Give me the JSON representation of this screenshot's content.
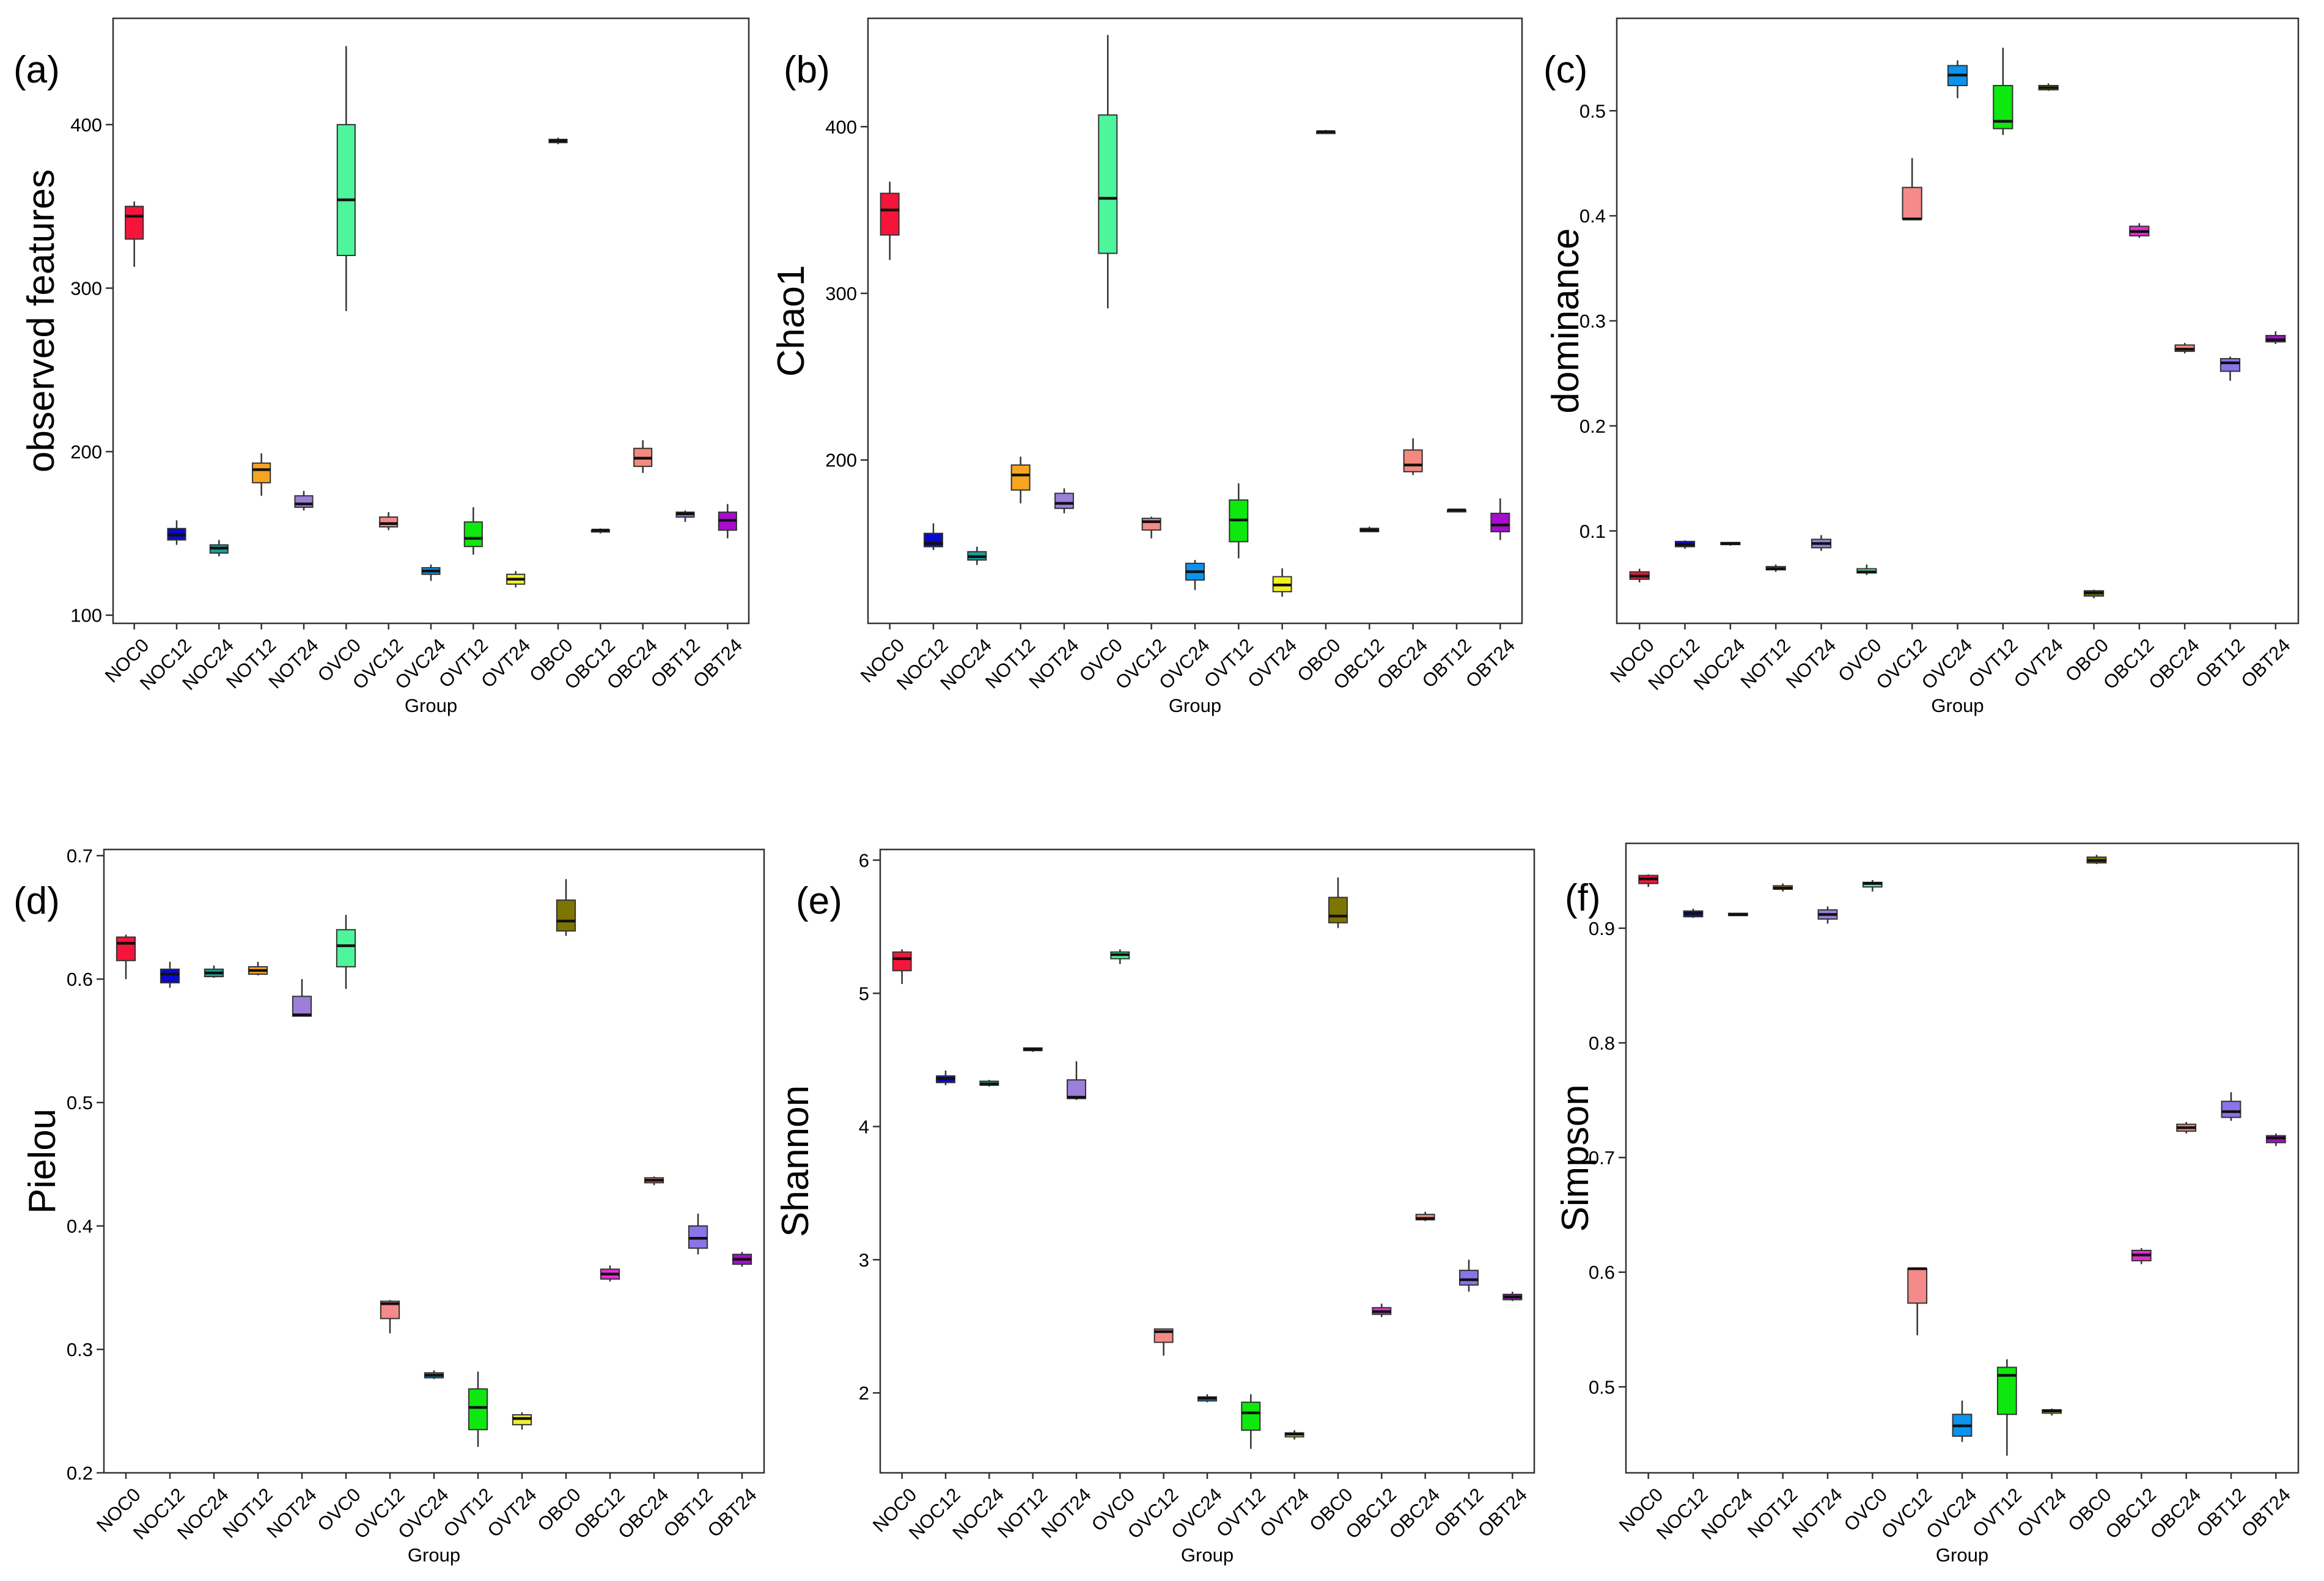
{
  "chart_data": [
    {
      "panel": "(a)",
      "type": "box",
      "title": "",
      "xlabel": "Group",
      "ylabel": "observed features",
      "ylim": [
        95,
        465
      ],
      "yticks": [
        100,
        200,
        300,
        400
      ],
      "categories": [
        "NOC0",
        "NOC12",
        "NOC24",
        "NOT12",
        "NOT24",
        "OVC0",
        "OVC12",
        "OVC24",
        "OVT12",
        "OVT24",
        "OBC0",
        "OBC12",
        "OBC24",
        "OBT12",
        "OBT24"
      ],
      "boxes": [
        {
          "min": 313,
          "q1": 330,
          "median": 344,
          "q3": 350,
          "max": 353
        },
        {
          "min": 143,
          "q1": 146,
          "median": 149,
          "q3": 153,
          "max": 158
        },
        {
          "min": 136,
          "q1": 138,
          "median": 141,
          "q3": 143,
          "max": 146
        },
        {
          "min": 173,
          "q1": 181,
          "median": 189,
          "q3": 193,
          "max": 199
        },
        {
          "min": 164,
          "q1": 166,
          "median": 168,
          "q3": 173,
          "max": 176
        },
        {
          "min": 286,
          "q1": 320,
          "median": 354,
          "q3": 400,
          "max": 448
        },
        {
          "min": 152,
          "q1": 154,
          "median": 156,
          "q3": 160,
          "max": 163
        },
        {
          "min": 121,
          "q1": 125,
          "median": 127,
          "q3": 129,
          "max": 131
        },
        {
          "min": 137,
          "q1": 142,
          "median": 147,
          "q3": 157,
          "max": 166
        },
        {
          "min": 117,
          "q1": 119,
          "median": 122,
          "q3": 125,
          "max": 127
        },
        {
          "min": 388,
          "q1": 389,
          "median": 390,
          "q3": 391,
          "max": 392
        },
        {
          "min": 150,
          "q1": 151,
          "median": 152,
          "q3": 152,
          "max": 153
        },
        {
          "min": 187,
          "q1": 191,
          "median": 196,
          "q3": 202,
          "max": 207
        },
        {
          "min": 157,
          "q1": 160,
          "median": 162,
          "q3": 163,
          "max": 164
        },
        {
          "min": 147,
          "q1": 152,
          "median": 158,
          "q3": 163,
          "max": 168
        }
      ]
    },
    {
      "panel": "(b)",
      "type": "box",
      "title": "",
      "xlabel": "Group",
      "ylabel": "Chao1",
      "ylim": [
        102,
        465
      ],
      "yticks": [
        200,
        300,
        400
      ],
      "categories": [
        "NOC0",
        "NOC12",
        "NOC24",
        "NOT12",
        "NOT24",
        "OVC0",
        "OVC12",
        "OVC24",
        "OVT12",
        "OVT24",
        "OBC0",
        "OBC12",
        "OBC24",
        "OBT12",
        "OBT24"
      ],
      "boxes": [
        {
          "min": 320,
          "q1": 335,
          "median": 350,
          "q3": 360,
          "max": 367
        },
        {
          "min": 146,
          "q1": 148,
          "median": 150,
          "q3": 156,
          "max": 162
        },
        {
          "min": 137,
          "q1": 140,
          "median": 142,
          "q3": 145,
          "max": 148
        },
        {
          "min": 174,
          "q1": 182,
          "median": 191,
          "q3": 197,
          "max": 202
        },
        {
          "min": 168,
          "q1": 171,
          "median": 174,
          "q3": 180,
          "max": 183
        },
        {
          "min": 291,
          "q1": 324,
          "median": 357,
          "q3": 407,
          "max": 455
        },
        {
          "min": 153,
          "q1": 158,
          "median": 163,
          "q3": 165,
          "max": 166
        },
        {
          "min": 122,
          "q1": 128,
          "median": 133,
          "q3": 138,
          "max": 140
        },
        {
          "min": 141,
          "q1": 151,
          "median": 164,
          "q3": 176,
          "max": 186
        },
        {
          "min": 118,
          "q1": 121,
          "median": 125,
          "q3": 130,
          "max": 135
        },
        {
          "min": 396,
          "q1": 397,
          "median": 397,
          "q3": 397,
          "max": 398
        },
        {
          "min": 157,
          "q1": 157,
          "median": 158,
          "q3": 159,
          "max": 160
        },
        {
          "min": 191,
          "q1": 193,
          "median": 197,
          "q3": 206,
          "max": 213
        },
        {
          "min": 169,
          "q1": 169,
          "median": 170,
          "q3": 170,
          "max": 170
        },
        {
          "min": 152,
          "q1": 157,
          "median": 161,
          "q3": 168,
          "max": 177
        }
      ]
    },
    {
      "panel": "(c)",
      "type": "box",
      "title": "",
      "xlabel": "Group",
      "ylabel": "dominance",
      "ylim": [
        0.012,
        0.588
      ],
      "yticks": [
        0.1,
        0.2,
        0.3,
        0.4,
        0.5
      ],
      "categories": [
        "NOC0",
        "NOC12",
        "NOC24",
        "NOT12",
        "NOT24",
        "OVC0",
        "OVC12",
        "OVC24",
        "OVT12",
        "OVT24",
        "OBC0",
        "OBC12",
        "OBC24",
        "OBT12",
        "OBT24"
      ],
      "boxes": [
        {
          "min": 0.051,
          "q1": 0.054,
          "median": 0.057,
          "q3": 0.061,
          "max": 0.064
        },
        {
          "min": 0.083,
          "q1": 0.085,
          "median": 0.087,
          "q3": 0.09,
          "max": 0.091
        },
        {
          "min": 0.086,
          "q1": 0.087,
          "median": 0.088,
          "q3": 0.089,
          "max": 0.089
        },
        {
          "min": 0.061,
          "q1": 0.063,
          "median": 0.064,
          "q3": 0.066,
          "max": 0.068
        },
        {
          "min": 0.081,
          "q1": 0.084,
          "median": 0.088,
          "q3": 0.092,
          "max": 0.096
        },
        {
          "min": 0.058,
          "q1": 0.06,
          "median": 0.061,
          "q3": 0.064,
          "max": 0.068
        },
        {
          "min": 0.397,
          "q1": 0.397,
          "median": 0.397,
          "q3": 0.427,
          "max": 0.455
        },
        {
          "min": 0.512,
          "q1": 0.524,
          "median": 0.534,
          "q3": 0.543,
          "max": 0.548
        },
        {
          "min": 0.477,
          "q1": 0.483,
          "median": 0.49,
          "q3": 0.524,
          "max": 0.56
        },
        {
          "min": 0.519,
          "q1": 0.52,
          "median": 0.522,
          "q3": 0.524,
          "max": 0.526
        },
        {
          "min": 0.036,
          "q1": 0.038,
          "median": 0.041,
          "q3": 0.043,
          "max": 0.044
        },
        {
          "min": 0.379,
          "q1": 0.381,
          "median": 0.385,
          "q3": 0.39,
          "max": 0.393
        },
        {
          "min": 0.269,
          "q1": 0.271,
          "median": 0.273,
          "q3": 0.277,
          "max": 0.279
        },
        {
          "min": 0.243,
          "q1": 0.252,
          "median": 0.26,
          "q3": 0.264,
          "max": 0.266
        },
        {
          "min": 0.278,
          "q1": 0.28,
          "median": 0.282,
          "q3": 0.286,
          "max": 0.29
        }
      ]
    },
    {
      "panel": "(d)",
      "type": "box",
      "title": "",
      "xlabel": "Group",
      "ylabel": "Pielou",
      "ylim": [
        0.2,
        0.705
      ],
      "yticks": [
        0.2,
        0.3,
        0.4,
        0.5,
        0.6,
        0.7
      ],
      "categories": [
        "NOC0",
        "NOC12",
        "NOC24",
        "NOT12",
        "NOT24",
        "OVC0",
        "OVC12",
        "OVC24",
        "OVT12",
        "OVT24",
        "OBC0",
        "OBC12",
        "OBC24",
        "OBT12",
        "OBT24"
      ],
      "boxes": [
        {
          "min": 0.6,
          "q1": 0.615,
          "median": 0.629,
          "q3": 0.634,
          "max": 0.636
        },
        {
          "min": 0.593,
          "q1": 0.597,
          "median": 0.604,
          "q3": 0.608,
          "max": 0.614
        },
        {
          "min": 0.601,
          "q1": 0.602,
          "median": 0.605,
          "q3": 0.608,
          "max": 0.611
        },
        {
          "min": 0.603,
          "q1": 0.604,
          "median": 0.607,
          "q3": 0.61,
          "max": 0.614
        },
        {
          "min": 0.57,
          "q1": 0.57,
          "median": 0.571,
          "q3": 0.586,
          "max": 0.6
        },
        {
          "min": 0.592,
          "q1": 0.61,
          "median": 0.627,
          "q3": 0.64,
          "max": 0.652
        },
        {
          "min": 0.313,
          "q1": 0.325,
          "median": 0.337,
          "q3": 0.339,
          "max": 0.34
        },
        {
          "min": 0.276,
          "q1": 0.277,
          "median": 0.279,
          "q3": 0.281,
          "max": 0.283
        },
        {
          "min": 0.221,
          "q1": 0.235,
          "median": 0.253,
          "q3": 0.268,
          "max": 0.282
        },
        {
          "min": 0.235,
          "q1": 0.239,
          "median": 0.244,
          "q3": 0.247,
          "max": 0.249
        },
        {
          "min": 0.635,
          "q1": 0.639,
          "median": 0.647,
          "q3": 0.664,
          "max": 0.681
        },
        {
          "min": 0.355,
          "q1": 0.357,
          "median": 0.361,
          "q3": 0.365,
          "max": 0.368
        },
        {
          "min": 0.433,
          "q1": 0.435,
          "median": 0.437,
          "q3": 0.439,
          "max": 0.44
        },
        {
          "min": 0.377,
          "q1": 0.382,
          "median": 0.39,
          "q3": 0.4,
          "max": 0.41
        },
        {
          "min": 0.367,
          "q1": 0.369,
          "median": 0.373,
          "q3": 0.377,
          "max": 0.379
        }
      ]
    },
    {
      "panel": "(e)",
      "type": "box",
      "title": "",
      "xlabel": "Group",
      "ylabel": "Shannon",
      "ylim": [
        1.4,
        6.08
      ],
      "yticks": [
        2,
        3,
        4,
        5,
        6
      ],
      "categories": [
        "NOC0",
        "NOC12",
        "NOC24",
        "NOT12",
        "NOT24",
        "OVC0",
        "OVC12",
        "OVC24",
        "OVT12",
        "OVT24",
        "OBC0",
        "OBC12",
        "OBC24",
        "OBT12",
        "OBT24"
      ],
      "boxes": [
        {
          "min": 5.07,
          "q1": 5.17,
          "median": 5.26,
          "q3": 5.31,
          "max": 5.33
        },
        {
          "min": 4.31,
          "q1": 4.33,
          "median": 4.36,
          "q3": 4.38,
          "max": 4.42
        },
        {
          "min": 4.3,
          "q1": 4.31,
          "median": 4.32,
          "q3": 4.34,
          "max": 4.35
        },
        {
          "min": 4.56,
          "q1": 4.57,
          "median": 4.58,
          "q3": 4.59,
          "max": 4.59
        },
        {
          "min": 4.2,
          "q1": 4.21,
          "median": 4.22,
          "q3": 4.35,
          "max": 4.49
        },
        {
          "min": 5.22,
          "q1": 5.26,
          "median": 5.29,
          "q3": 5.31,
          "max": 5.33
        },
        {
          "min": 2.28,
          "q1": 2.38,
          "median": 2.46,
          "q3": 2.48,
          "max": 2.48
        },
        {
          "min": 1.93,
          "q1": 1.94,
          "median": 1.96,
          "q3": 1.97,
          "max": 1.99
        },
        {
          "min": 1.58,
          "q1": 1.72,
          "median": 1.85,
          "q3": 1.93,
          "max": 1.99
        },
        {
          "min": 1.65,
          "q1": 1.67,
          "median": 1.69,
          "q3": 1.7,
          "max": 1.72
        },
        {
          "min": 5.49,
          "q1": 5.53,
          "median": 5.58,
          "q3": 5.72,
          "max": 5.87
        },
        {
          "min": 2.57,
          "q1": 2.59,
          "median": 2.61,
          "q3": 2.64,
          "max": 2.67
        },
        {
          "min": 3.29,
          "q1": 3.3,
          "median": 3.31,
          "q3": 3.34,
          "max": 3.36
        },
        {
          "min": 2.76,
          "q1": 2.81,
          "median": 2.85,
          "q3": 2.92,
          "max": 3.0
        },
        {
          "min": 2.69,
          "q1": 2.7,
          "median": 2.72,
          "q3": 2.74,
          "max": 2.76
        }
      ]
    },
    {
      "panel": "(f)",
      "type": "box",
      "title": "",
      "xlabel": "Group",
      "ylabel": "Simpson",
      "ylim": [
        0.425,
        0.974
      ],
      "yticks": [
        0.5,
        0.6,
        0.7,
        0.8,
        0.9
      ],
      "categories": [
        "NOC0",
        "NOC12",
        "NOC24",
        "NOT12",
        "NOT24",
        "OVC0",
        "OVC12",
        "OVC24",
        "OVT12",
        "OVT24",
        "OBC0",
        "OBC12",
        "OBC24",
        "OBT12",
        "OBT24"
      ],
      "boxes": [
        {
          "min": 0.936,
          "q1": 0.939,
          "median": 0.943,
          "q3": 0.946,
          "max": 0.947
        },
        {
          "min": 0.909,
          "q1": 0.91,
          "median": 0.913,
          "q3": 0.915,
          "max": 0.917
        },
        {
          "min": 0.911,
          "q1": 0.911,
          "median": 0.912,
          "q3": 0.913,
          "max": 0.913
        },
        {
          "min": 0.932,
          "q1": 0.934,
          "median": 0.935,
          "q3": 0.937,
          "max": 0.939
        },
        {
          "min": 0.904,
          "q1": 0.908,
          "median": 0.912,
          "q3": 0.916,
          "max": 0.919
        },
        {
          "min": 0.932,
          "q1": 0.936,
          "median": 0.939,
          "q3": 0.94,
          "max": 0.942
        },
        {
          "min": 0.545,
          "q1": 0.573,
          "median": 0.603,
          "q3": 0.603,
          "max": 0.604
        },
        {
          "min": 0.452,
          "q1": 0.457,
          "median": 0.466,
          "q3": 0.476,
          "max": 0.488
        },
        {
          "min": 0.44,
          "q1": 0.476,
          "median": 0.51,
          "q3": 0.517,
          "max": 0.524
        },
        {
          "min": 0.475,
          "q1": 0.477,
          "median": 0.479,
          "q3": 0.48,
          "max": 0.481
        },
        {
          "min": 0.956,
          "q1": 0.957,
          "median": 0.959,
          "q3": 0.962,
          "max": 0.964
        },
        {
          "min": 0.607,
          "q1": 0.61,
          "median": 0.615,
          "q3": 0.619,
          "max": 0.621
        },
        {
          "min": 0.721,
          "q1": 0.723,
          "median": 0.726,
          "q3": 0.729,
          "max": 0.731
        },
        {
          "min": 0.732,
          "q1": 0.735,
          "median": 0.74,
          "q3": 0.749,
          "max": 0.757
        },
        {
          "min": 0.71,
          "q1": 0.713,
          "median": 0.717,
          "q3": 0.719,
          "max": 0.721
        }
      ]
    }
  ],
  "colors": {
    "NOC0": "#f5153a",
    "NOC12": "#0a0acc",
    "NOC24": "#1a9f9a",
    "NOT12": "#f7a51f",
    "NOT24": "#9b7fd9",
    "OVC0": "#4df59b",
    "OVC12": "#f58a8a",
    "OVC24": "#0a94f0",
    "OVT12": "#0fe80f",
    "OVT24": "#f0f02a",
    "OBC0": "#7d7500",
    "OBC12": "#e82ad6",
    "OBC24": "#f5897e",
    "OBT12": "#8a74e8",
    "OBT24": "#a60dcc"
  }
}
